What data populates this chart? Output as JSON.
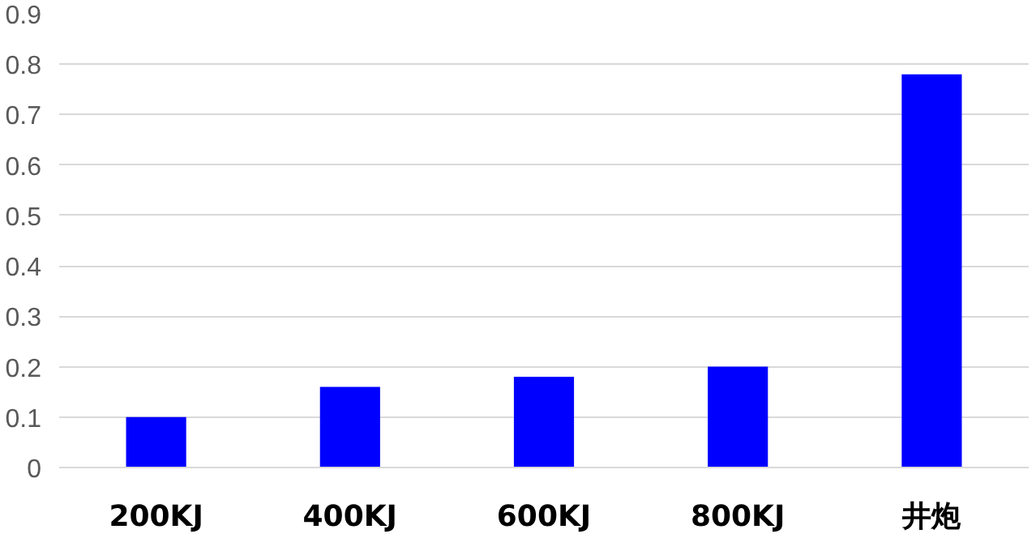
{
  "chart_data": {
    "type": "bar",
    "categories": [
      "200KJ",
      "400KJ",
      "600KJ",
      "800KJ",
      "井炮"
    ],
    "values": [
      0.1,
      0.16,
      0.18,
      0.2,
      0.78
    ],
    "color": "#0000ff",
    "ylim": [
      0,
      0.9
    ],
    "yticks": [
      0,
      0.1,
      0.2,
      0.3,
      0.4,
      0.5,
      0.6,
      0.7,
      0.8,
      0.9
    ],
    "grid": "y"
  }
}
